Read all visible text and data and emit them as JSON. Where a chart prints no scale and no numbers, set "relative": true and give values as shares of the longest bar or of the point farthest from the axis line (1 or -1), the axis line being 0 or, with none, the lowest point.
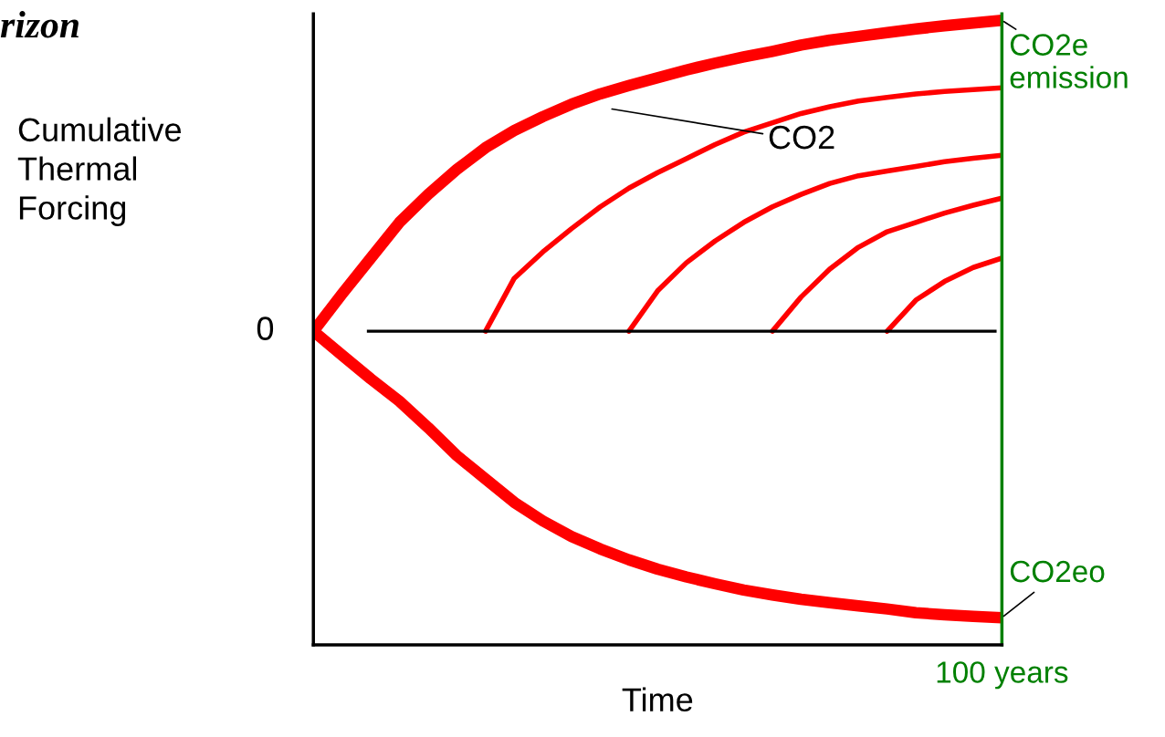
{
  "chart_data": {
    "type": "line",
    "title": "rizon",
    "xlabel": "Time",
    "ylabel": "Cumulative\nThermal\nForcing",
    "relative": true,
    "legend": false,
    "grid": false,
    "marker": "none",
    "line_style": "solid",
    "categories": [
      null,
      null,
      null,
      null,
      null,
      null,
      null,
      null,
      null,
      null,
      null,
      null,
      null,
      null,
      null,
      null,
      null,
      null,
      null,
      null,
      null,
      null,
      null,
      null,
      null
    ],
    "series": [
      {
        "name": "CO2e emission",
        "color": "#ff0000",
        "values": [
          0,
          0.12,
          0.235,
          0.35,
          0.44,
          0.52,
          0.59,
          0.645,
          0.69,
          0.73,
          0.763,
          0.79,
          0.815,
          0.84,
          0.862,
          0.882,
          0.9,
          0.92,
          0.936,
          0.948,
          0.96,
          0.972,
          0.982,
          0.991,
          1.0
        ]
      },
      {
        "color": "#ff0000",
        "values": [
          null,
          null,
          null,
          null,
          null,
          null,
          0,
          0.17,
          0.255,
          0.33,
          0.4,
          0.46,
          0.51,
          0.555,
          0.6,
          0.64,
          0.67,
          0.7,
          0.722,
          0.74,
          0.752,
          0.763,
          0.771,
          0.777,
          0.783
        ]
      },
      {
        "color": "#ff0000",
        "values": [
          null,
          null,
          null,
          null,
          null,
          null,
          null,
          null,
          null,
          null,
          null,
          0,
          0.13,
          0.22,
          0.29,
          0.35,
          0.4,
          0.44,
          0.475,
          0.5,
          0.515,
          0.53,
          0.545,
          0.556,
          0.566
        ]
      },
      {
        "color": "#ff0000",
        "values": [
          null,
          null,
          null,
          null,
          null,
          null,
          null,
          null,
          null,
          null,
          null,
          null,
          null,
          null,
          null,
          null,
          0,
          0.11,
          0.2,
          0.27,
          0.32,
          0.35,
          0.38,
          0.405,
          0.428
        ]
      },
      {
        "color": "#ff0000",
        "values": [
          null,
          null,
          null,
          null,
          null,
          null,
          null,
          null,
          null,
          null,
          null,
          null,
          null,
          null,
          null,
          null,
          null,
          null,
          null,
          null,
          0,
          0.1,
          0.16,
          0.205,
          0.235
        ]
      },
      {
        "name": "CO2eo",
        "color": "#ff0000",
        "values": [
          0,
          -0.077,
          -0.153,
          -0.225,
          -0.31,
          -0.4,
          -0.475,
          -0.55,
          -0.61,
          -0.66,
          -0.7,
          -0.735,
          -0.765,
          -0.79,
          -0.812,
          -0.832,
          -0.848,
          -0.862,
          -0.873,
          -0.883,
          -0.893,
          -0.905,
          -0.912,
          -0.917,
          -0.921
        ]
      }
    ],
    "annotations": [
      "CO2",
      "0",
      "100 years"
    ]
  }
}
